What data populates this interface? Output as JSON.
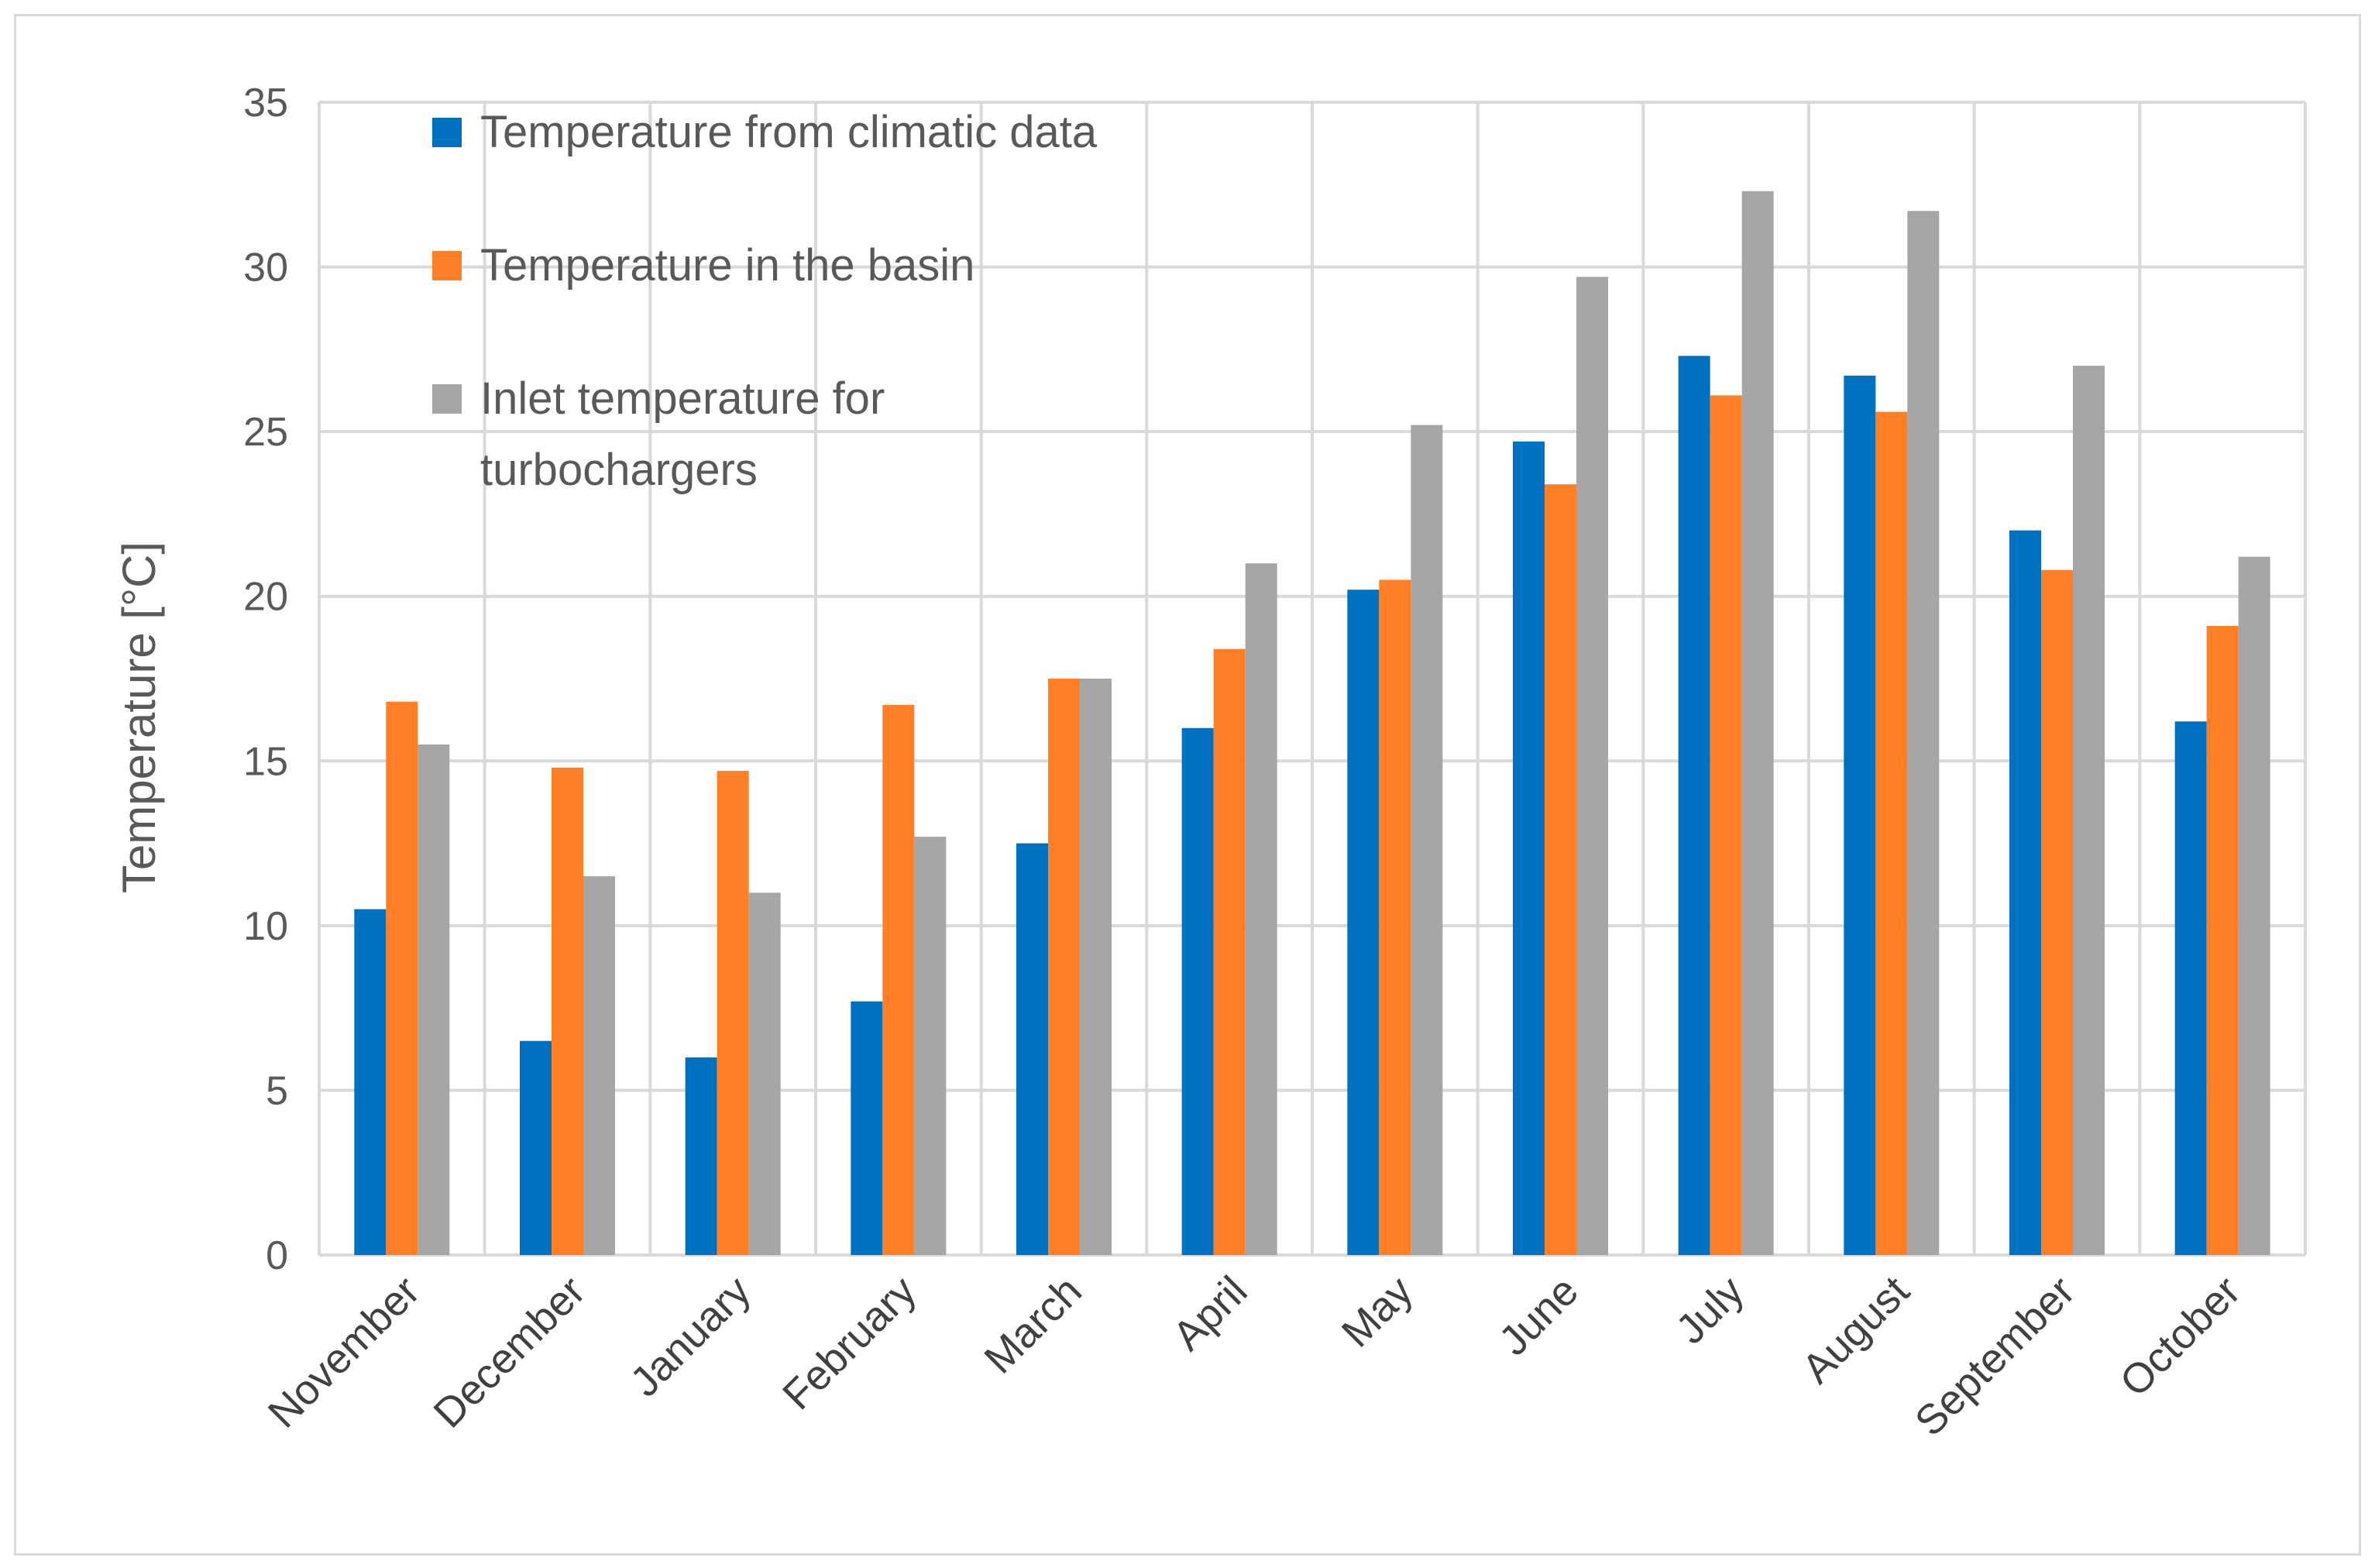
{
  "chart_data": {
    "type": "bar",
    "title": "",
    "xlabel": "",
    "ylabel": "Temperature [°C]",
    "ylim": [
      0,
      35
    ],
    "yticks": [
      "0",
      "5",
      "10",
      "15",
      "20",
      "25",
      "30",
      "35"
    ],
    "grid": true,
    "legend_position": "top-left",
    "categories": [
      "November",
      "December",
      "January",
      "February",
      "March",
      "April",
      "May",
      "June",
      "July",
      "August",
      "September",
      "October"
    ],
    "series": [
      {
        "name": "Temperature from climatic data",
        "legend_lines": [
          "Temperature from climatic data"
        ],
        "color": "#0070c0",
        "values": [
          10.5,
          6.5,
          6.0,
          7.7,
          12.5,
          16.0,
          20.2,
          24.7,
          27.3,
          26.7,
          22.0,
          16.2
        ]
      },
      {
        "name": "Temperature in the basin",
        "legend_lines": [
          "Temperature in the basin"
        ],
        "color": "#ff7f27",
        "values": [
          16.8,
          14.8,
          14.7,
          16.7,
          17.5,
          18.4,
          20.5,
          23.4,
          26.1,
          25.6,
          20.8,
          19.1
        ]
      },
      {
        "name": "Inlet temperature for turbochargers",
        "legend_lines": [
          "Inlet temperature for",
          "turbochargers"
        ],
        "color": "#a6a6a6",
        "values": [
          15.5,
          11.5,
          11.0,
          12.7,
          17.5,
          21.0,
          25.2,
          29.7,
          32.3,
          31.7,
          27.0,
          21.2
        ]
      }
    ]
  }
}
